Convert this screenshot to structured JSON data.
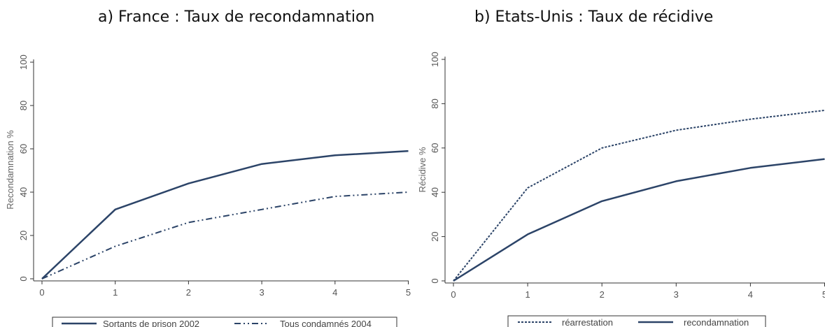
{
  "chart_data": [
    {
      "type": "line",
      "title": "a) France : Taux de recondamnation",
      "xlabel": "",
      "ylabel": "Recondamnation %",
      "xlim": [
        0,
        5
      ],
      "ylim": [
        0,
        100
      ],
      "x_ticks": [
        0,
        1,
        2,
        3,
        4,
        5
      ],
      "y_ticks": [
        0,
        20,
        40,
        60,
        80,
        100
      ],
      "grid": false,
      "legend_position": "bottom",
      "x": [
        0,
        1,
        2,
        3,
        4,
        5
      ],
      "series": [
        {
          "name": "Sortants de prison 2002",
          "values": [
            0,
            32,
            44,
            53,
            57,
            59
          ],
          "style": "solid",
          "color": "#2c4468"
        },
        {
          "name": "Tous condamnés 2004",
          "values": [
            0,
            15,
            26,
            32,
            38,
            40
          ],
          "style": "dashdot",
          "color": "#2c4468"
        }
      ]
    },
    {
      "type": "line",
      "title": "b) Etats-Unis : Taux de récidive",
      "xlabel": "",
      "ylabel": "Récidive %",
      "xlim": [
        0,
        5
      ],
      "ylim": [
        0,
        100
      ],
      "x_ticks": [
        0,
        1,
        2,
        3,
        4,
        5
      ],
      "y_ticks": [
        0,
        20,
        40,
        60,
        80,
        100
      ],
      "grid": false,
      "legend_position": "bottom",
      "x": [
        0,
        1,
        2,
        3,
        4,
        5
      ],
      "series": [
        {
          "name": "réarrestation",
          "values": [
            0,
            42,
            60,
            68,
            73,
            77
          ],
          "style": "dotted",
          "color": "#2c4468"
        },
        {
          "name": "recondamnation",
          "values": [
            0,
            21,
            36,
            45,
            51,
            55
          ],
          "style": "solid",
          "color": "#2c4468"
        }
      ]
    }
  ]
}
